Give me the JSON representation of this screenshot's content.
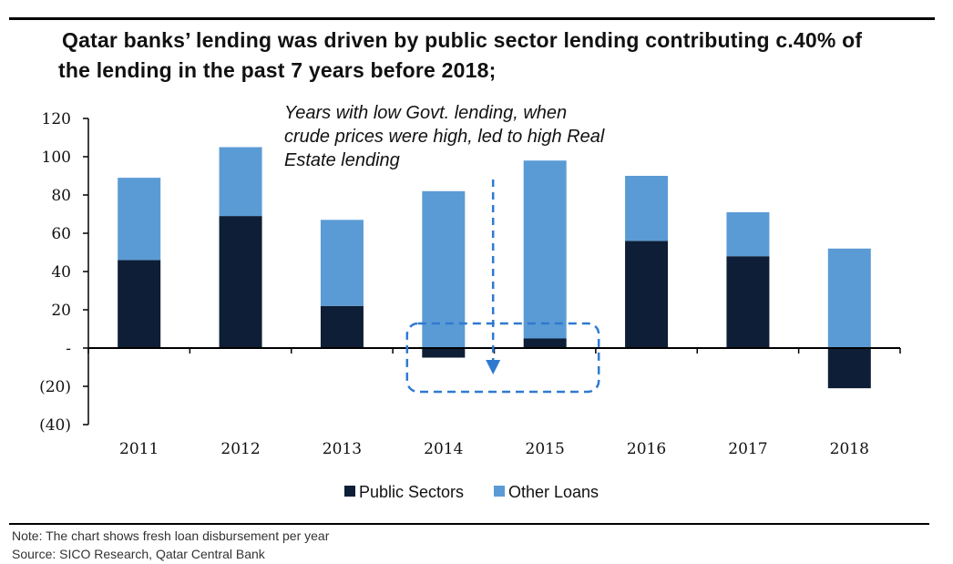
{
  "title_line1": "Qatar banks’ lending was driven by public sector lending contributing c.40% of",
  "title_line2": "the lending in the past 7 years before 2018;",
  "note": "Note: The chart shows fresh loan disbursement per year",
  "source": "Source: SICO Research, Qatar Central Bank",
  "annotation": [
    "Years with low Govt. lending, when",
    "crude prices were high, led to high Real",
    "Estate lending"
  ],
  "colors": {
    "public": "#0e1e36",
    "other": "#5b9bd5",
    "annot": "#2f7ad0"
  },
  "chart_data": {
    "type": "bar",
    "stacked": true,
    "categories": [
      "2011",
      "2012",
      "2013",
      "2014",
      "2015",
      "2016",
      "2017",
      "2018"
    ],
    "series": [
      {
        "name": "Public Sectors",
        "values": [
          46,
          69,
          22,
          -5,
          5,
          56,
          48,
          -21
        ]
      },
      {
        "name": "Other Loans",
        "values": [
          43,
          36,
          45,
          82,
          93,
          34,
          23,
          52
        ]
      }
    ],
    "ylim": [
      -40,
      120
    ],
    "yticks": [
      120,
      100,
      80,
      60,
      40,
      20,
      0,
      -20,
      -40
    ],
    "ytick_labels": [
      "120",
      "100",
      "80",
      "60",
      "40",
      "20",
      "-",
      "(20)",
      "(40)"
    ],
    "legend_position": "bottom-center"
  }
}
